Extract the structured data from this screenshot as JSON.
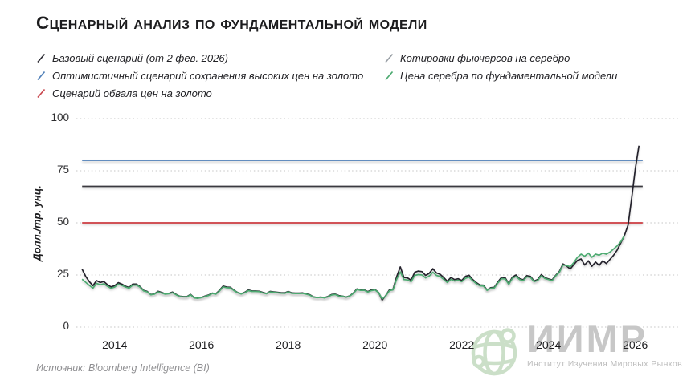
{
  "title": "Сценарный анализ по фундаментальной модели",
  "legend": {
    "left": [
      {
        "label": "Базовый сценарий (от 2 фев. 2026)",
        "color": "#2c2b33",
        "icon": "line-swatch-icon"
      },
      {
        "label": "Оптимистичный сценарий сохранения высоких цен на золото",
        "color": "#4f7fb8",
        "icon": "line-swatch-icon"
      },
      {
        "label": "Сценарий обвала цен на золото",
        "color": "#c9474e",
        "icon": "line-swatch-icon"
      }
    ],
    "right": [
      {
        "label": "Котировки фьючерсов на серебро",
        "color": "#9aa0a6",
        "icon": "line-swatch-icon"
      },
      {
        "label": "Цена серебра по фундаментальной модели",
        "color": "#4caa70",
        "icon": "line-swatch-icon"
      }
    ]
  },
  "source": "Источник: Bloomberg Intelligence (BI)",
  "watermark": {
    "name": "ИИМР",
    "subtitle": "Институт Изучения Мировых Рынков",
    "globe_icon_color": "#cbdfc8"
  },
  "chart_data": {
    "type": "line",
    "title": "Сценарный анализ по фундаментальной модели",
    "xlabel": "",
    "ylabel": "Долл./тр. унц.",
    "ylim": [
      0,
      100
    ],
    "xlim": [
      2013.1,
      2026.3
    ],
    "y_ticks": [
      0,
      25,
      50,
      75,
      100
    ],
    "x_ticks": [
      2014,
      2016,
      2018,
      2020,
      2022,
      2024,
      2026
    ],
    "grid": "horizontal-dotted",
    "gridline_color": "#c6c6c6",
    "legend_position": "top",
    "scenario_lines": [
      {
        "name": "Оптимистичный сценарий сохранения высоких цен на золото",
        "value": 80,
        "color": "#4f7fb8",
        "x_start": 2013.25,
        "x_end": 2026.17
      },
      {
        "name": "Базовый сценарий (от 2 фев. 2026)",
        "value": 67.5,
        "color": "#3a393f",
        "x_start": 2013.25,
        "x_end": 2026.17
      },
      {
        "name": "Сценарий обвала цен на золото",
        "value": 50,
        "color": "#cc3b40",
        "x_start": 2013.25,
        "x_end": 2026.17
      }
    ],
    "series": [
      {
        "name": "Котировки фьючерсов на серебро",
        "color": "#24222c",
        "start": 2013.25,
        "step_years": 0.08333,
        "values": [
          27.8,
          24.3,
          21.8,
          19.9,
          22.3,
          21.4,
          21.9,
          20.4,
          19.3,
          19.9,
          21.3,
          20.6,
          19.6,
          19.0,
          20.6,
          20.6,
          19.5,
          17.6,
          17.1,
          15.6,
          15.9,
          17.2,
          16.6,
          16.0,
          16.2,
          16.8,
          15.7,
          14.8,
          14.6,
          14.6,
          15.7,
          14.1,
          13.9,
          14.2,
          14.9,
          15.4,
          16.3,
          16.0,
          17.6,
          19.7,
          19.2,
          19.1,
          17.7,
          16.6,
          16.0,
          16.7,
          17.8,
          17.3,
          17.3,
          17.2,
          16.6,
          16.1,
          17.1,
          16.9,
          16.7,
          16.5,
          16.4,
          17.1,
          16.4,
          16.3,
          16.3,
          16.4,
          16.0,
          15.5,
          14.5,
          14.2,
          14.4,
          14.1,
          14.7,
          15.6,
          15.8,
          15.1,
          14.9,
          14.4,
          15.0,
          16.3,
          18.3,
          17.8,
          17.9,
          17.0,
          17.8,
          18.0,
          16.6,
          13.0,
          15.2,
          17.9,
          18.2,
          24.2,
          28.9,
          23.8,
          23.6,
          22.5,
          26.3,
          26.9,
          26.6,
          24.8,
          25.8,
          28.0,
          26.0,
          25.4,
          23.8,
          22.0,
          23.8,
          22.8,
          23.2,
          22.4,
          24.3,
          24.9,
          22.9,
          21.4,
          20.2,
          20.1,
          17.8,
          18.9,
          19.1,
          21.7,
          23.9,
          23.7,
          20.8,
          24.0,
          25.0,
          23.2,
          22.7,
          24.7,
          24.3,
          22.1,
          22.8,
          25.2,
          23.7,
          23.1,
          22.6,
          24.9,
          26.7,
          30.3,
          29.3,
          27.9,
          30.0,
          32.0,
          32.7,
          29.8,
          31.8,
          29.2,
          31.2,
          29.6,
          31.8,
          30.5,
          32.5,
          34.5,
          37.0,
          40.5,
          44.0,
          49.0,
          62.0,
          76.0,
          87.0
        ]
      },
      {
        "name": "Цена серебра по фундаментальной модели",
        "color": "#4caa70",
        "start": 2013.25,
        "step_years": 0.08333,
        "values": [
          23.0,
          21.5,
          20.0,
          18.7,
          21.0,
          20.3,
          20.8,
          19.6,
          18.6,
          19.2,
          20.6,
          20.0,
          19.2,
          18.7,
          20.1,
          20.2,
          19.2,
          17.4,
          16.9,
          15.5,
          15.8,
          16.9,
          16.3,
          15.8,
          16.0,
          16.5,
          15.5,
          14.7,
          14.5,
          14.5,
          15.5,
          14.0,
          13.8,
          14.1,
          14.7,
          15.2,
          16.1,
          15.8,
          17.3,
          19.3,
          18.9,
          18.8,
          17.5,
          16.5,
          15.9,
          16.5,
          17.5,
          17.1,
          17.1,
          17.0,
          16.4,
          16.0,
          16.9,
          16.7,
          16.5,
          16.3,
          16.2,
          16.9,
          16.2,
          16.1,
          16.1,
          16.2,
          15.8,
          15.3,
          14.4,
          14.1,
          14.3,
          14.0,
          14.5,
          15.4,
          15.6,
          14.9,
          14.8,
          14.3,
          14.9,
          16.1,
          18.0,
          17.6,
          17.7,
          16.8,
          17.5,
          17.8,
          16.5,
          13.5,
          15.0,
          17.5,
          17.9,
          23.0,
          26.5,
          22.8,
          22.6,
          21.8,
          24.8,
          25.2,
          25.0,
          23.6,
          24.5,
          26.3,
          24.8,
          24.3,
          22.9,
          21.4,
          22.9,
          22.1,
          22.5,
          21.8,
          23.4,
          24.0,
          22.3,
          20.9,
          19.8,
          19.7,
          17.6,
          18.6,
          18.8,
          21.2,
          23.2,
          23.1,
          20.5,
          23.4,
          24.3,
          22.8,
          22.3,
          24.1,
          23.8,
          21.8,
          22.4,
          24.6,
          23.3,
          22.8,
          22.3,
          24.6,
          26.3,
          29.8,
          29.5,
          29.0,
          31.0,
          33.5,
          35.0,
          34.0,
          35.5,
          33.5,
          35.0,
          34.5,
          35.5,
          35.0,
          36.0,
          37.5,
          39.0,
          41.0,
          44.0
        ]
      }
    ]
  }
}
